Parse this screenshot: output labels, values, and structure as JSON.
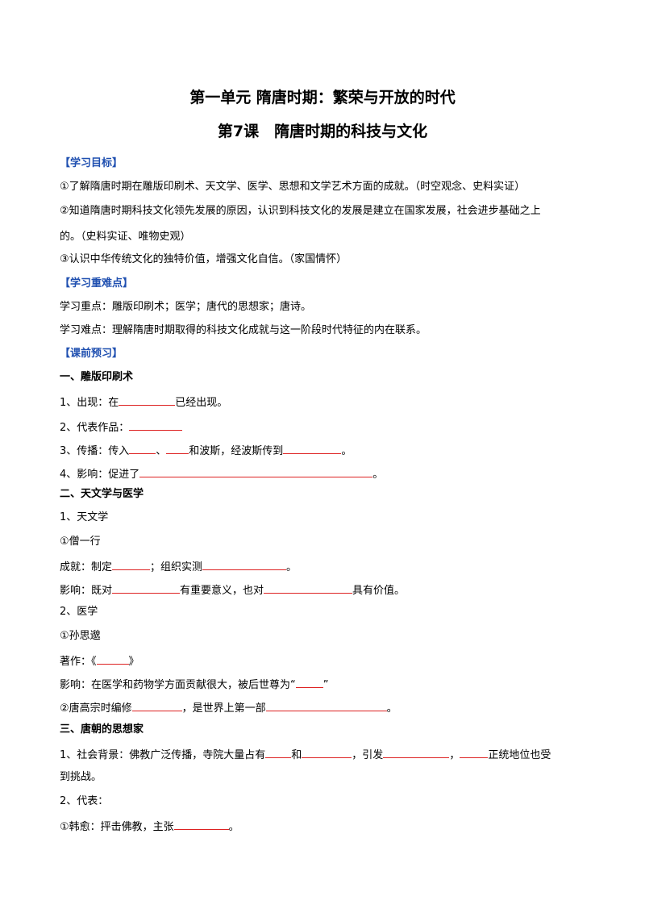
{
  "title": "第一单元 隋唐时期：繁荣与开放的时代",
  "subtitle": "第7课　隋唐时期的科技与文化",
  "lines": [
    [
      "【学习目标】"
    ],
    [
      "①了解隋唐时期在雕版印刷术、天文学、医学、思想和文学艺术方面的成就。（时空观念、史料实证）"
    ],
    [
      "②知道隋唐时期科技文化领先发展的原因，认识到科技文化的发展是建立在国家发展，社会进步基础之上"
    ],
    [
      "的。（史料实证、唯物史观）"
    ],
    [
      "③认识中华传统文化的独特价值，增强文化自信。（家国情怀）"
    ],
    [
      "【学习重难点】"
    ],
    [
      "学习重点：雕版印刷术；医学；唐代的思想家；唐诗。"
    ],
    [
      "学习难点：理解隋唐时期取得的科技文化成就与这一阶段时代特征的内在联系。"
    ],
    [
      "【课前预习】"
    ],
    [
      "一、雕版印刷术"
    ],
    [
      "1、出现：在",
      "已经出现。"
    ],
    [
      "2、代表作品："
    ],
    [
      "3、传播：传入",
      "、",
      "和波斯，经波斯传到",
      "。"
    ],
    [
      "4、影响：促进了",
      "。"
    ],
    [
      "二、天文学与医学"
    ],
    [
      "1、天文学"
    ],
    [
      "①僧一行"
    ],
    [
      "成就：制定",
      "；组织实测",
      "。"
    ],
    [
      "影响：既对",
      "有重要意义，也对",
      "具有价值。"
    ],
    [
      "2、医学"
    ],
    [
      "①孙思邈"
    ],
    [
      "著作：《",
      "》"
    ],
    [
      "影响：在医学和药物学方面贡献很大，被后世尊为“",
      "”"
    ],
    [
      "②唐高宗时编修",
      "，是世界上第一部",
      "。"
    ],
    [
      "三、唐朝的思想家"
    ],
    [
      "1、社会背景：佛教广泛传播，寺院大量占有",
      "和",
      "，引发",
      "，",
      "正统地位也受"
    ],
    [
      "到挑战。"
    ],
    [
      "2、代表："
    ],
    [
      "①韩愈：抨击佛教，主张",
      "。"
    ]
  ]
}
